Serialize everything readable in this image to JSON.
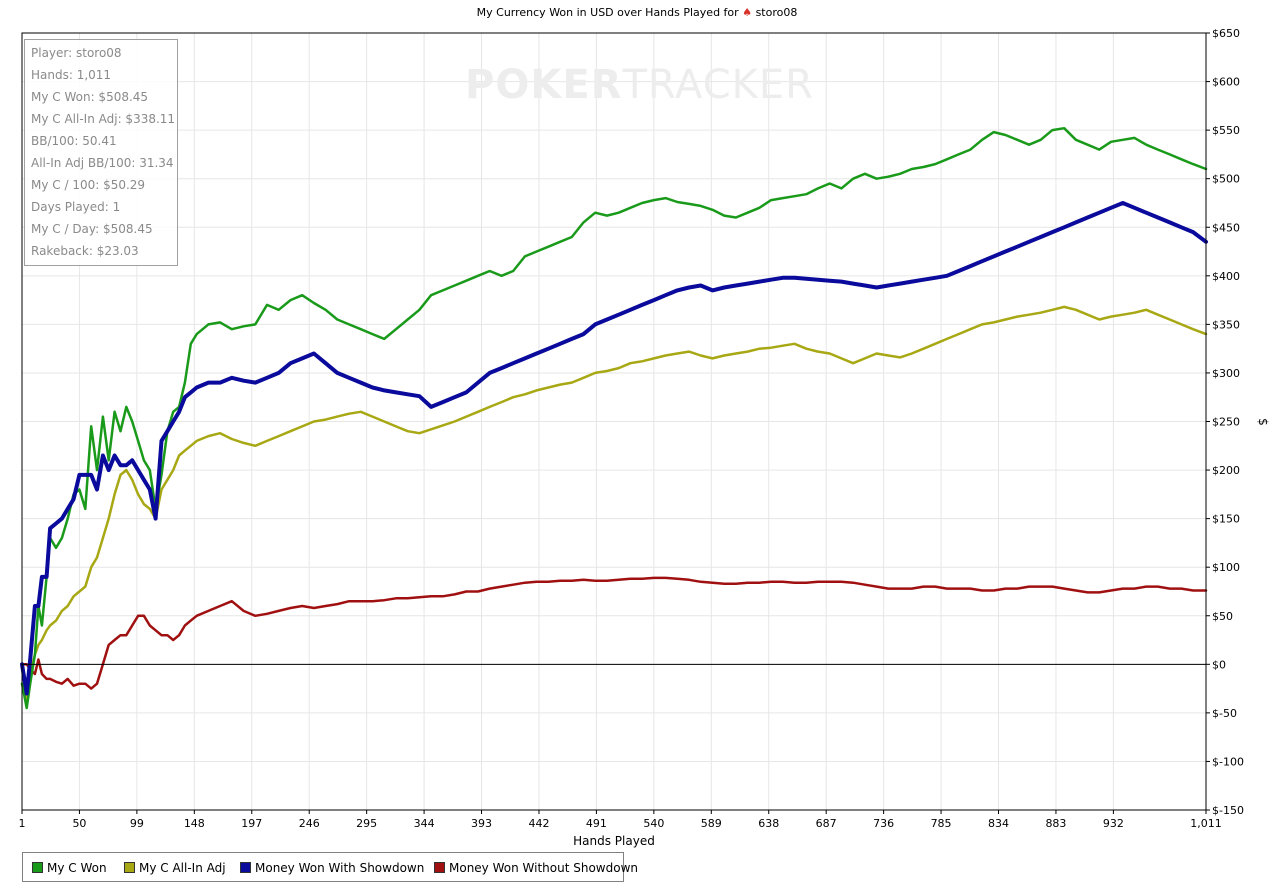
{
  "title": {
    "text_before": "My Currency Won in USD over Hands Played for ",
    "icon": "spade-icon",
    "player": "storo08"
  },
  "watermark": {
    "part1": "POKER",
    "part2": "TRACKER"
  },
  "stats": [
    "Player: storo08",
    "Hands: 1,011",
    "My C Won: $508.45",
    "My C All-In Adj: $338.11",
    "BB/100: 50.41",
    "All-In Adj BB/100: 31.34",
    "My C / 100: $50.29",
    "Days Played: 1",
    "My C / Day: $508.45",
    "Rakeback: $23.03"
  ],
  "legend": [
    {
      "label": "My C Won",
      "color": "#1a9a1a"
    },
    {
      "label": "My C All-In Adj",
      "color": "#a8a814"
    },
    {
      "label": "Money Won With Showdown",
      "color": "#0a0a9c"
    },
    {
      "label": "Money Won Without Showdown",
      "color": "#a01010"
    }
  ],
  "chart_data": {
    "type": "line",
    "title": "My Currency Won in USD over Hands Played for storo08",
    "xlabel": "Hands Played",
    "ylabel": "$",
    "xlim": [
      1,
      1011
    ],
    "ylim": [
      -150,
      650
    ],
    "x_ticks": [
      "1",
      "50",
      "99",
      "148",
      "197",
      "246",
      "295",
      "344",
      "393",
      "442",
      "491",
      "540",
      "589",
      "638",
      "687",
      "736",
      "785",
      "834",
      "883",
      "932",
      "1,011"
    ],
    "y_ticks": [
      "$650",
      "$600",
      "$550",
      "$500",
      "$450",
      "$400",
      "$350",
      "$300",
      "$250",
      "$200",
      "$150",
      "$100",
      "$50",
      "$0",
      "$-50",
      "$-100",
      "$-150"
    ],
    "y_tick_values": [
      650,
      600,
      550,
      500,
      450,
      400,
      350,
      300,
      250,
      200,
      150,
      100,
      50,
      0,
      -50,
      -100,
      -150
    ],
    "x_tick_values": [
      1,
      50,
      99,
      148,
      197,
      246,
      295,
      344,
      393,
      442,
      491,
      540,
      589,
      638,
      687,
      736,
      785,
      834,
      883,
      932,
      1011
    ],
    "grid": true,
    "legend_position": "bottom",
    "series": [
      {
        "name": "My C Won",
        "color": "#1a9a1a",
        "x": [
          1,
          5,
          8,
          12,
          15,
          18,
          22,
          25,
          30,
          35,
          40,
          45,
          50,
          55,
          60,
          65,
          70,
          75,
          80,
          85,
          90,
          95,
          100,
          105,
          110,
          115,
          120,
          125,
          130,
          135,
          140,
          145,
          150,
          160,
          170,
          180,
          190,
          200,
          210,
          220,
          230,
          240,
          250,
          260,
          270,
          280,
          290,
          300,
          310,
          320,
          330,
          340,
          350,
          360,
          370,
          380,
          390,
          400,
          410,
          420,
          430,
          440,
          450,
          460,
          470,
          480,
          490,
          500,
          510,
          520,
          530,
          540,
          550,
          560,
          570,
          580,
          590,
          600,
          610,
          620,
          630,
          640,
          650,
          660,
          670,
          680,
          690,
          700,
          710,
          720,
          730,
          740,
          750,
          760,
          770,
          780,
          790,
          800,
          810,
          820,
          830,
          840,
          850,
          860,
          870,
          880,
          890,
          900,
          910,
          920,
          930,
          940,
          950,
          960,
          970,
          980,
          990,
          1000,
          1011
        ],
        "y": [
          -20,
          -45,
          -20,
          10,
          60,
          40,
          90,
          130,
          120,
          130,
          150,
          175,
          180,
          160,
          245,
          200,
          255,
          210,
          260,
          240,
          265,
          250,
          230,
          210,
          200,
          160,
          195,
          240,
          260,
          265,
          290,
          330,
          340,
          350,
          352,
          345,
          348,
          350,
          370,
          365,
          375,
          380,
          372,
          365,
          355,
          350,
          345,
          340,
          335,
          345,
          355,
          365,
          380,
          385,
          390,
          395,
          400,
          405,
          400,
          405,
          420,
          425,
          430,
          435,
          440,
          455,
          465,
          462,
          465,
          470,
          475,
          478,
          480,
          476,
          474,
          472,
          468,
          462,
          460,
          465,
          470,
          478,
          480,
          482,
          484,
          490,
          495,
          490,
          500,
          505,
          500,
          502,
          505,
          510,
          512,
          515,
          520,
          525,
          530,
          540,
          548,
          545,
          540,
          535,
          540,
          550,
          552,
          540,
          535,
          530,
          538,
          540,
          542,
          535,
          530,
          525,
          520,
          515,
          510
        ]
      },
      {
        "name": "My C All-In Adj",
        "color": "#a8a814",
        "x": [
          1,
          5,
          8,
          12,
          15,
          18,
          22,
          25,
          30,
          35,
          40,
          45,
          50,
          55,
          60,
          65,
          70,
          75,
          80,
          85,
          90,
          95,
          100,
          105,
          110,
          115,
          120,
          125,
          130,
          135,
          140,
          145,
          150,
          160,
          170,
          180,
          190,
          200,
          210,
          220,
          230,
          240,
          250,
          260,
          270,
          280,
          290,
          300,
          310,
          320,
          330,
          340,
          350,
          360,
          370,
          380,
          390,
          400,
          410,
          420,
          430,
          440,
          450,
          460,
          470,
          480,
          490,
          500,
          510,
          520,
          530,
          540,
          550,
          560,
          570,
          580,
          590,
          600,
          610,
          620,
          630,
          640,
          650,
          660,
          670,
          680,
          690,
          700,
          710,
          720,
          730,
          740,
          750,
          760,
          770,
          780,
          790,
          800,
          810,
          820,
          830,
          840,
          850,
          860,
          870,
          880,
          890,
          900,
          910,
          920,
          930,
          940,
          950,
          960,
          970,
          980,
          990,
          1000,
          1011
        ],
        "y": [
          -20,
          -40,
          -10,
          10,
          20,
          25,
          35,
          40,
          45,
          55,
          60,
          70,
          75,
          80,
          100,
          110,
          130,
          150,
          175,
          195,
          200,
          190,
          175,
          165,
          160,
          150,
          180,
          190,
          200,
          215,
          220,
          225,
          230,
          235,
          238,
          232,
          228,
          225,
          230,
          235,
          240,
          245,
          250,
          252,
          255,
          258,
          260,
          255,
          250,
          245,
          240,
          238,
          242,
          246,
          250,
          255,
          260,
          265,
          270,
          275,
          278,
          282,
          285,
          288,
          290,
          295,
          300,
          302,
          305,
          310,
          312,
          315,
          318,
          320,
          322,
          318,
          315,
          318,
          320,
          322,
          325,
          326,
          328,
          330,
          325,
          322,
          320,
          315,
          310,
          315,
          320,
          318,
          316,
          320,
          325,
          330,
          335,
          340,
          345,
          350,
          352,
          355,
          358,
          360,
          362,
          365,
          368,
          365,
          360,
          355,
          358,
          360,
          362,
          365,
          360,
          355,
          350,
          345,
          340
        ]
      },
      {
        "name": "Money Won With Showdown",
        "color": "#0a0a9c",
        "x": [
          1,
          5,
          8,
          12,
          15,
          18,
          22,
          25,
          30,
          35,
          40,
          45,
          50,
          55,
          60,
          65,
          70,
          75,
          80,
          85,
          90,
          95,
          100,
          105,
          110,
          115,
          120,
          125,
          130,
          135,
          140,
          145,
          150,
          160,
          170,
          180,
          190,
          200,
          210,
          220,
          230,
          240,
          250,
          260,
          270,
          280,
          290,
          300,
          310,
          320,
          330,
          340,
          350,
          360,
          370,
          380,
          390,
          400,
          410,
          420,
          430,
          440,
          450,
          460,
          470,
          480,
          490,
          500,
          510,
          520,
          530,
          540,
          550,
          560,
          570,
          580,
          590,
          600,
          610,
          620,
          630,
          640,
          650,
          660,
          670,
          680,
          690,
          700,
          710,
          720,
          730,
          740,
          750,
          760,
          770,
          780,
          790,
          800,
          810,
          820,
          830,
          840,
          850,
          860,
          870,
          880,
          890,
          900,
          910,
          920,
          930,
          940,
          950,
          960,
          970,
          980,
          990,
          1000,
          1011
        ],
        "y": [
          0,
          -30,
          5,
          60,
          60,
          90,
          90,
          140,
          145,
          150,
          160,
          170,
          195,
          195,
          195,
          180,
          215,
          200,
          215,
          205,
          205,
          210,
          200,
          190,
          180,
          150,
          230,
          240,
          250,
          260,
          275,
          280,
          285,
          290,
          290,
          295,
          292,
          290,
          295,
          300,
          310,
          315,
          320,
          310,
          300,
          295,
          290,
          285,
          282,
          280,
          278,
          276,
          265,
          270,
          275,
          280,
          290,
          300,
          305,
          310,
          315,
          320,
          325,
          330,
          335,
          340,
          350,
          355,
          360,
          365,
          370,
          375,
          380,
          385,
          388,
          390,
          385,
          388,
          390,
          392,
          394,
          396,
          398,
          398,
          397,
          396,
          395,
          394,
          392,
          390,
          388,
          390,
          392,
          394,
          396,
          398,
          400,
          405,
          410,
          415,
          420,
          425,
          430,
          435,
          440,
          445,
          450,
          455,
          460,
          465,
          470,
          475,
          470,
          465,
          460,
          455,
          450,
          445,
          435
        ]
      },
      {
        "name": "Money Won Without Showdown",
        "color": "#a01010",
        "x": [
          1,
          5,
          8,
          12,
          15,
          18,
          22,
          25,
          30,
          35,
          40,
          45,
          50,
          55,
          60,
          65,
          70,
          75,
          80,
          85,
          90,
          95,
          100,
          105,
          110,
          115,
          120,
          125,
          130,
          135,
          140,
          145,
          150,
          160,
          170,
          180,
          190,
          200,
          210,
          220,
          230,
          240,
          250,
          260,
          270,
          280,
          290,
          300,
          310,
          320,
          330,
          340,
          350,
          360,
          370,
          380,
          390,
          400,
          410,
          420,
          430,
          440,
          450,
          460,
          470,
          480,
          490,
          500,
          510,
          520,
          530,
          540,
          550,
          560,
          570,
          580,
          590,
          600,
          610,
          620,
          630,
          640,
          650,
          660,
          670,
          680,
          690,
          700,
          710,
          720,
          730,
          740,
          750,
          760,
          770,
          780,
          790,
          800,
          810,
          820,
          830,
          840,
          850,
          860,
          870,
          880,
          890,
          900,
          910,
          920,
          930,
          940,
          950,
          960,
          970,
          980,
          990,
          1000,
          1011
        ],
        "y": [
          0,
          0,
          -5,
          -10,
          5,
          -10,
          -15,
          -15,
          -18,
          -20,
          -15,
          -22,
          -20,
          -20,
          -25,
          -20,
          0,
          20,
          25,
          30,
          30,
          40,
          50,
          50,
          40,
          35,
          30,
          30,
          25,
          30,
          40,
          45,
          50,
          55,
          60,
          65,
          55,
          50,
          52,
          55,
          58,
          60,
          58,
          60,
          62,
          65,
          65,
          65,
          66,
          68,
          68,
          69,
          70,
          70,
          72,
          75,
          75,
          78,
          80,
          82,
          84,
          85,
          85,
          86,
          86,
          87,
          86,
          86,
          87,
          88,
          88,
          89,
          89,
          88,
          87,
          85,
          84,
          83,
          83,
          84,
          84,
          85,
          85,
          84,
          84,
          85,
          85,
          85,
          84,
          82,
          80,
          78,
          78,
          78,
          80,
          80,
          78,
          78,
          78,
          76,
          76,
          78,
          78,
          80,
          80,
          80,
          78,
          76,
          74,
          74,
          76,
          78,
          78,
          80,
          80,
          78,
          78,
          76,
          76
        ]
      }
    ]
  }
}
